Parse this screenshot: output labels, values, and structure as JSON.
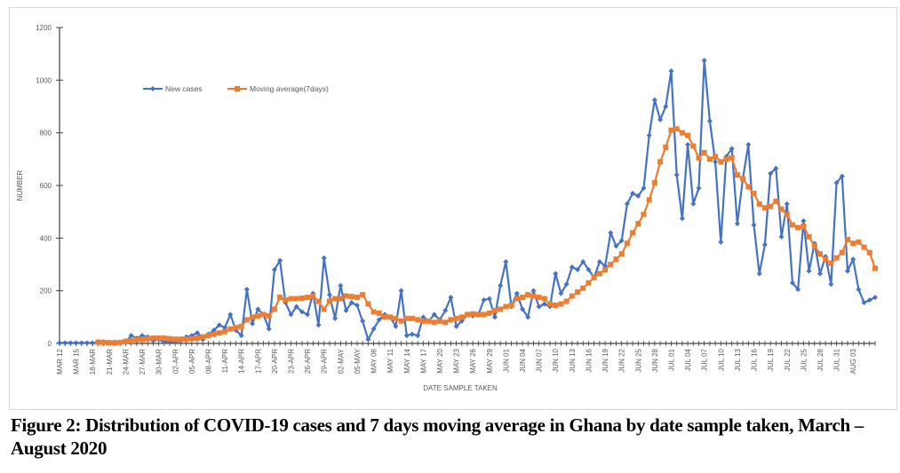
{
  "caption": "Figure 2: Distribution of COVID-19 cases and 7 days moving average in Ghana by date sample taken, March – August 2020",
  "chart_data": {
    "type": "line",
    "title": "",
    "xlabel": "DATE SAMPLE TAKEN",
    "ylabel": "NUMBER",
    "ylim": [
      0,
      1200
    ],
    "yticks": [
      0,
      200,
      400,
      600,
      800,
      1000,
      1200
    ],
    "grid": false,
    "legend_position": "top-left",
    "start_date": "2020-03-12",
    "x_tick_labels": [
      "MAR 12",
      "MAR 15",
      "18-MAR",
      "21-MAR",
      "24-MAR",
      "27-MAR",
      "30-MAR",
      "02-APR",
      "05-APR",
      "08-APR",
      "11-APR",
      "14-APR",
      "17-APR",
      "20-APR",
      "23-APR",
      "26-APR",
      "29-APR",
      "02-MAY",
      "05-MAY",
      "MAY 08",
      "MAY 11",
      "MAY 14",
      "MAY 17",
      "MAY 20",
      "MAY 23",
      "MAY 26",
      "MAY 29",
      "JUN 01",
      "JUN 04",
      "JUN 07",
      "JUN 10",
      "JUN 13",
      "JUN 16",
      "JUN 19",
      "JUN 22",
      "JUN 25",
      "JUN 28",
      "JUL 01",
      "JUL 04",
      "JUL 07",
      "JUL 10",
      "JUL 13",
      "JUL 16",
      "JUL 19",
      "JUL 22",
      "JUL 25",
      "JUL 28",
      "JUL 31",
      "AUG 03"
    ],
    "series": [
      {
        "name": "New cases",
        "color": "#4472c4",
        "marker": "diamond",
        "values": [
          2,
          2,
          2,
          2,
          2,
          2,
          2,
          3,
          6,
          2,
          5,
          3,
          3,
          30,
          20,
          30,
          25,
          10,
          15,
          5,
          8,
          5,
          10,
          25,
          30,
          40,
          15,
          35,
          50,
          70,
          60,
          110,
          50,
          30,
          205,
          75,
          130,
          110,
          55,
          280,
          315,
          155,
          110,
          140,
          120,
          110,
          190,
          70,
          325,
          185,
          95,
          220,
          125,
          155,
          145,
          85,
          15,
          55,
          90,
          110,
          100,
          65,
          200,
          30,
          35,
          30,
          100,
          85,
          110,
          90,
          125,
          175,
          65,
          85,
          110,
          105,
          110,
          165,
          170,
          100,
          220,
          310,
          140,
          190,
          130,
          100,
          200,
          140,
          150,
          140,
          265,
          190,
          225,
          290,
          280,
          310,
          280,
          250,
          310,
          295,
          420,
          370,
          390,
          530,
          570,
          560,
          590,
          790,
          925,
          850,
          900,
          1035,
          640,
          475,
          755,
          530,
          590,
          1075,
          845,
          690,
          385,
          710,
          740,
          455,
          625,
          755,
          450,
          265,
          375,
          645,
          665,
          405,
          530,
          230,
          205,
          465,
          275,
          380,
          265,
          330,
          225,
          610,
          635,
          275,
          320,
          205,
          155,
          165,
          175
        ]
      },
      {
        "name": "Moving average(7days)",
        "color": "#ed7d31",
        "marker": "square",
        "values": [
          null,
          null,
          null,
          null,
          null,
          null,
          null,
          5,
          4,
          3,
          2,
          4,
          8,
          10,
          14,
          16,
          18,
          20,
          20,
          20,
          18,
          16,
          16,
          17,
          18,
          20,
          25,
          30,
          35,
          40,
          45,
          55,
          60,
          65,
          90,
          100,
          105,
          110,
          105,
          130,
          175,
          165,
          170,
          170,
          172,
          175,
          180,
          160,
          130,
          160,
          170,
          170,
          180,
          178,
          175,
          185,
          150,
          120,
          115,
          100,
          100,
          95,
          85,
          95,
          95,
          90,
          85,
          85,
          80,
          85,
          80,
          90,
          95,
          100,
          110,
          112,
          110,
          110,
          115,
          125,
          130,
          140,
          145,
          170,
          175,
          185,
          180,
          175,
          170,
          150,
          145,
          150,
          160,
          180,
          195,
          210,
          230,
          250,
          265,
          280,
          300,
          320,
          340,
          380,
          420,
          455,
          490,
          545,
          610,
          690,
          745,
          810,
          815,
          800,
          790,
          750,
          705,
          725,
          700,
          710,
          690,
          700,
          705,
          640,
          625,
          595,
          570,
          530,
          515,
          520,
          540,
          510,
          490,
          450,
          440,
          445,
          405,
          370,
          340,
          320,
          305,
          325,
          345,
          395,
          380,
          385,
          365,
          345,
          285
        ]
      }
    ]
  }
}
